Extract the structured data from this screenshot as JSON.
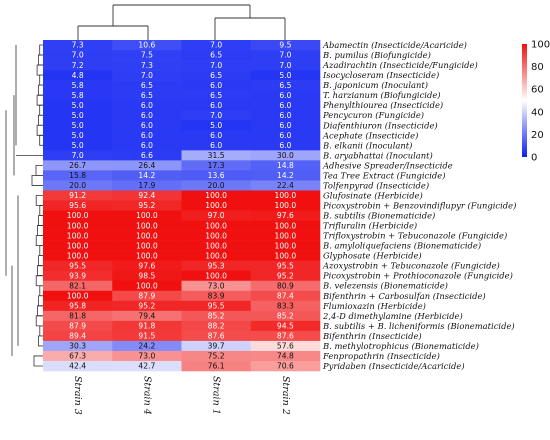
{
  "chart_data": {
    "type": "heatmap",
    "columns": [
      "Strain 3",
      "Strain 4",
      "Strain 1",
      "Strain 2"
    ],
    "rows": [
      "Abamectin (Insecticide/Acaricide)",
      "B. pumilus (Biofungicide)",
      "Azadirachtin (Insecticide/Fungicide)",
      "Isocycloseram (Insecticide)",
      "B. japonicum (Inoculant)",
      "T. harzianum (Biofungicide)",
      "Phenylthiourea (Insecticide)",
      "Pencycuron (Fungicide)",
      "Diafenthiuron (Insecticide)",
      "Acephate (Insecticide)",
      "B. elkanii (Inoculant)",
      "B. aryabhattai (Inoculant)",
      "Adhesive Spreader/Insecticide",
      "Tea Tree Extract (Fungicide)",
      "Tolfenpyrad (Insecticide)",
      "Glufosinate (Herbicide)",
      "Picoxystrobin + Benzovindiflupyr (Fungicide)",
      "B. subtilis (Bionematicide)",
      "Trifluralin (Herbicide)",
      "Trifloxystrobin + Tebuconazole (Fungicide)",
      "B. amyloliquefaciens (Bionematicide)",
      "Glyphosate (Herbicide)",
      "Azoxystrobin + Tebuconazole (Fungicide)",
      "Picoxystrobin + Prothioconazole (Fungicide)",
      "B. velezensis (Bionematicide)",
      "Bifenthrin + Carbosulfan (Insecticide)",
      "Flumioxazin (Herbicide)",
      "2,4-D dimethylamine (Herbicide)",
      "B. subtilis + B. licheniformis (Bionematicide)",
      "Bifenthrin (Insecticide)",
      "B. methylotrophicus (Bionematicide)",
      "Fenpropathrin (Insecticide)",
      "Pyridaben (Insecticide/Acaricide)"
    ],
    "values": [
      [
        7.3,
        10.6,
        7.0,
        9.5
      ],
      [
        7.0,
        7.5,
        6.5,
        7.0
      ],
      [
        7.2,
        7.3,
        7.0,
        7.0
      ],
      [
        4.8,
        7.0,
        6.5,
        5.0
      ],
      [
        5.8,
        6.5,
        6.0,
        6.5
      ],
      [
        5.8,
        6.5,
        6.5,
        6.0
      ],
      [
        5.0,
        6.0,
        6.0,
        6.0
      ],
      [
        5.0,
        6.0,
        7.0,
        6.0
      ],
      [
        5.0,
        6.0,
        5.0,
        6.0
      ],
      [
        5.0,
        6.0,
        6.0,
        6.0
      ],
      [
        5.0,
        6.0,
        6.0,
        6.0
      ],
      [
        7.0,
        6.6,
        31.5,
        30.0
      ],
      [
        26.7,
        26.4,
        17.3,
        14.8
      ],
      [
        15.8,
        14.2,
        13.6,
        14.2
      ],
      [
        20.0,
        17.9,
        20.0,
        22.4
      ],
      [
        91.2,
        92.4,
        100.0,
        100.0
      ],
      [
        95.6,
        95.2,
        100.0,
        100.0
      ],
      [
        100.0,
        100.0,
        97.0,
        97.6
      ],
      [
        100.0,
        100.0,
        100.0,
        100.0
      ],
      [
        100.0,
        100.0,
        100.0,
        100.0
      ],
      [
        100.0,
        100.0,
        100.0,
        100.0
      ],
      [
        100.0,
        100.0,
        100.0,
        100.0
      ],
      [
        95.5,
        97.6,
        95.3,
        95.5
      ],
      [
        93.9,
        98.5,
        100.0,
        95.2
      ],
      [
        82.1,
        100.0,
        73.0,
        80.9
      ],
      [
        100.0,
        87.9,
        83.9,
        87.4
      ],
      [
        95.8,
        95.2,
        95.5,
        83.3
      ],
      [
        81.8,
        79.4,
        85.2,
        85.2
      ],
      [
        87.9,
        91.8,
        88.2,
        94.5
      ],
      [
        89.4,
        91.5,
        87.6,
        87.6
      ],
      [
        30.3,
        24.2,
        39.7,
        57.6
      ],
      [
        67.3,
        73.0,
        75.2,
        74.8
      ],
      [
        42.4,
        42.7,
        76.1,
        70.6
      ]
    ],
    "colorbar": {
      "range": [
        0,
        100
      ],
      "ticks": [
        0,
        20,
        40,
        60,
        80,
        100
      ],
      "colors": {
        "low": "#0c1ef2",
        "mid": "#ffffff",
        "high": "#f01010"
      }
    },
    "dendrograms": {
      "column": true,
      "row": true
    }
  }
}
